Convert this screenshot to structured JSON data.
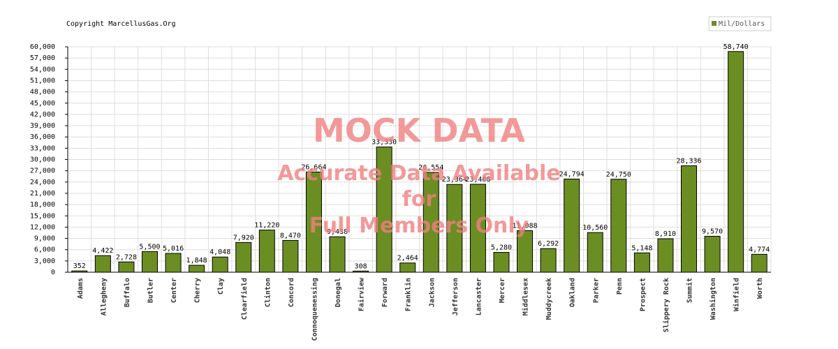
{
  "copyright": "Copyright MarcellusGas.Org",
  "watermark": {
    "line1": "MOCK DATA",
    "line2": "Accurate Data Available",
    "line3": "for",
    "line4": "Full Members Only",
    "color": "#f08080"
  },
  "chart_data": {
    "type": "bar",
    "title": "",
    "xlabel": "",
    "ylabel": "",
    "ylim": [
      0,
      60000
    ],
    "ytick_step": 3000,
    "grid": true,
    "legend_position": "top-right",
    "bar_color": "#6b8e23",
    "categories": [
      "Adams",
      "Allegheny",
      "Buffalo",
      "Butler",
      "Center",
      "Cherry",
      "Clay",
      "Clearfield",
      "Clinton",
      "Concord",
      "Connoquenessing",
      "Donegal",
      "Fairview",
      "Forward",
      "Franklin",
      "Jackson",
      "Jefferson",
      "Lancaster",
      "Mercer",
      "Middlesex",
      "Muddycreek",
      "Oakland",
      "Parker",
      "Penn",
      "Prospect",
      "Slippery Rock",
      "Summit",
      "Washington",
      "Winfield",
      "Worth"
    ],
    "series": [
      {
        "name": "Mil/Dollars",
        "values": [
          352,
          4422,
          2728,
          5500,
          5016,
          1848,
          4048,
          7920,
          11220,
          8470,
          26664,
          9438,
          308,
          33330,
          2464,
          26554,
          23364,
          23408,
          5280,
          11088,
          6292,
          24794,
          10560,
          24750,
          5148,
          8910,
          28336,
          9570,
          58740,
          4774
        ]
      }
    ]
  }
}
